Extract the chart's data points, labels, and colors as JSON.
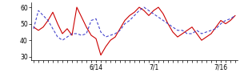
{
  "red": [
    48,
    46,
    48,
    52,
    57,
    50,
    44,
    47,
    43,
    60,
    54,
    48,
    43,
    41,
    31,
    36,
    40,
    42,
    47,
    52,
    55,
    57,
    60,
    58,
    55,
    58,
    60,
    56,
    50,
    45,
    42,
    44,
    46,
    48,
    44,
    40,
    42,
    44,
    48,
    52,
    50,
    52,
    55
  ],
  "blue": [
    47,
    58,
    55,
    52,
    47,
    42,
    40,
    42,
    44,
    44,
    43,
    44,
    52,
    53,
    45,
    42,
    43,
    44,
    46,
    50,
    52,
    55,
    58,
    60,
    58,
    56,
    54,
    52,
    50,
    48,
    46,
    46,
    44,
    44,
    46,
    44,
    45,
    46,
    47,
    50,
    52,
    53,
    55
  ],
  "xtick_named_positions": [
    13,
    25,
    39
  ],
  "xtick_labels": [
    "6/14",
    "7/1",
    "7/16"
  ],
  "xtick_all_positions": [
    0,
    1,
    2,
    3,
    4,
    5,
    6,
    7,
    8,
    9,
    10,
    11,
    12,
    13,
    14,
    15,
    16,
    17,
    18,
    19,
    20,
    21,
    22,
    23,
    24,
    25,
    26,
    27,
    28,
    29,
    30,
    31,
    32,
    33,
    34,
    35,
    36,
    37,
    38,
    39,
    40,
    41,
    42
  ],
  "ytick_positions": [
    30,
    40,
    50,
    60
  ],
  "ytick_labels": [
    "30",
    "40",
    "50",
    "60"
  ],
  "ylim": [
    28,
    63
  ],
  "xlim": [
    -0.5,
    42.5
  ],
  "red_color": "#cc0000",
  "blue_color": "#4444cc",
  "bg_color": "#ffffff",
  "linewidth": 0.8,
  "figsize": [
    3.0,
    0.96
  ],
  "dpi": 100
}
